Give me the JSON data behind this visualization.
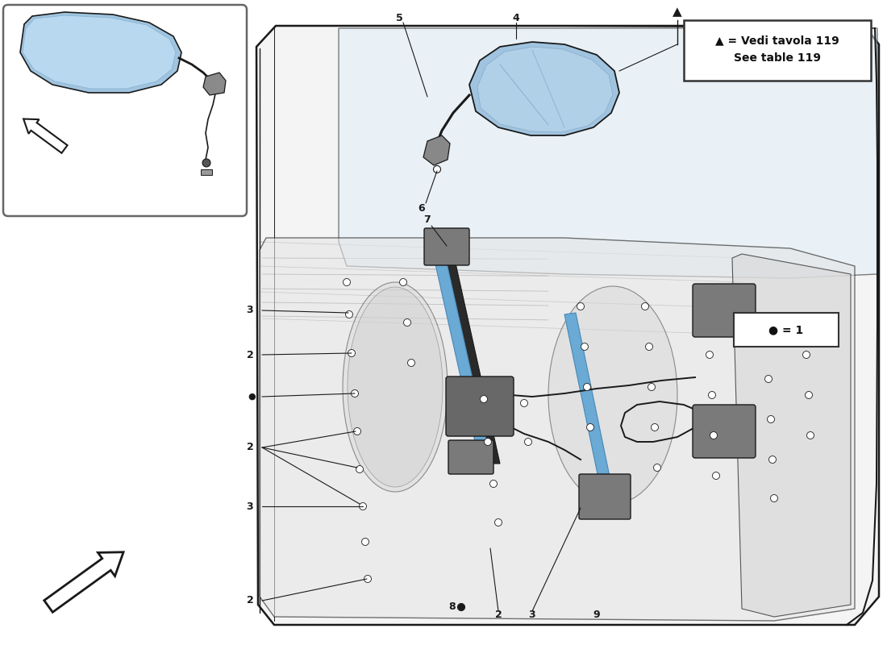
{
  "bg_color": "#ffffff",
  "legend_box_text1": "▲ = Vedi tavola 119",
  "legend_box_text2": "See table 119",
  "bullet_legend": "● = 1",
  "mirror_color": "#a0c4e0",
  "mirror_glass_color": "#b8d8f0",
  "line_color": "#1a1a1a",
  "door_face_color": "#f0f0f0",
  "door_edge_color": "#2a2a2a",
  "inner_panel_color": "#e0e0e0",
  "window_color": "#ddeeff",
  "rail_color": "#6aaad4",
  "bracket_color": "#7a7a7a",
  "screw_color": "#555555",
  "label_fontsize": 9,
  "legend_fontsize": 10,
  "inset_border_color": "#666666",
  "watermark_gray": "#cccccc",
  "watermark_yellow": "#d4c040"
}
